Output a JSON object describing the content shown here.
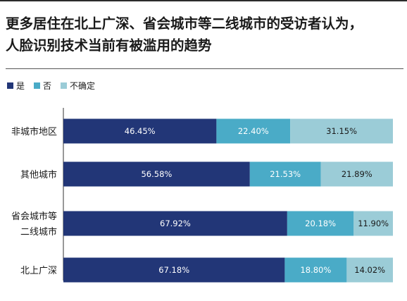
{
  "title_line1": "更多居住在北上广深、省会城市等二线城市的受访者认为，",
  "title_line2": "人脸识别技术当前有被滥用的趋势",
  "colors": {
    "yes": "#223677",
    "no": "#4aabc7",
    "unsure": "#9bccd7"
  },
  "chart_data": {
    "type": "bar",
    "orientation": "horizontal",
    "stacked": true,
    "title": "更多居住在北上广深、省会城市等二线城市的受访者认为，人脸识别技术当前有被滥用的趋势",
    "legend_position": "top-left",
    "categories": [
      [
        "非城市地区"
      ],
      [
        "其他城市"
      ],
      [
        "省会城市等",
        "二线城市"
      ],
      [
        "北上广深"
      ]
    ],
    "series": [
      {
        "name": "是",
        "values": [
          46.45,
          56.58,
          67.92,
          67.18
        ],
        "labels": [
          "46.45%",
          "56.58%",
          "67.92%",
          "67.18%"
        ]
      },
      {
        "name": "否",
        "values": [
          22.4,
          21.53,
          20.18,
          18.8
        ],
        "labels": [
          "22.40%",
          "21.53%",
          "20.18%",
          "18.80%"
        ]
      },
      {
        "name": "不确定",
        "values": [
          31.15,
          21.89,
          11.9,
          14.02
        ],
        "labels": [
          "31.15%",
          "21.89%",
          "11.90%",
          "14.02%"
        ]
      }
    ],
    "xlim": [
      0,
      100
    ]
  }
}
